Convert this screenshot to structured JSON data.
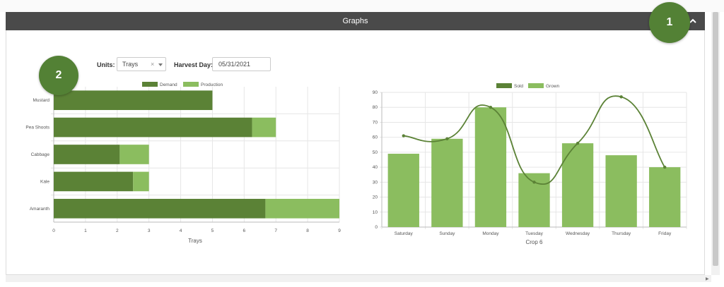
{
  "panel": {
    "title": "Graphs",
    "collapse_icon": "chevron-up-icon"
  },
  "badges": [
    "1",
    "2"
  ],
  "filters": {
    "units_label": "Units:",
    "units_value": "Trays",
    "clear_glyph": "×",
    "harvest_label": "Harvest Day:",
    "harvest_value": "05/31/2021"
  },
  "colors": {
    "header": "#4a4a4a",
    "badge": "#538135",
    "dark_green": "#5b8236",
    "light_green": "#8bbd5f"
  },
  "chart_data": [
    {
      "type": "bar",
      "orientation": "horizontal",
      "stacked": true,
      "categories": [
        "Mustard",
        "Pea Shoots",
        "Cabbage",
        "Kale",
        "Amaranth"
      ],
      "series": [
        {
          "name": "Demand",
          "values": [
            5,
            6.25,
            2.08,
            2.5,
            6.67
          ],
          "color": "#5b8236"
        },
        {
          "name": "Production",
          "values": [
            0,
            0.75,
            0.92,
            0.5,
            2.33
          ],
          "color": "#8bbd5f"
        }
      ],
      "xlabel": "Trays",
      "xlim": [
        0,
        9
      ],
      "xticks": [
        "0",
        "1",
        "2",
        "3",
        "4",
        "5",
        "6",
        "7",
        "8",
        "9"
      ],
      "legend": "top",
      "grid": true
    },
    {
      "type": "bar",
      "overlay": "line",
      "categories": [
        "Saturday",
        "Sunday",
        "Monday",
        "Tuesday",
        "Wednesday",
        "Thursday",
        "Friday"
      ],
      "series": [
        {
          "name": "Sold",
          "type": "line",
          "values": [
            61,
            59,
            80,
            30,
            56,
            87,
            40
          ],
          "color": "#5b8236"
        },
        {
          "name": "Grown",
          "type": "bar",
          "values": [
            49,
            59,
            80,
            36,
            56,
            48,
            40
          ],
          "color": "#8bbd5f"
        }
      ],
      "xlabel": "Crop 6",
      "ylim": [
        0,
        90
      ],
      "yticks": [
        "0",
        "10",
        "20",
        "30",
        "40",
        "50",
        "60",
        "70",
        "80",
        "90"
      ],
      "legend": "top",
      "grid": true
    }
  ]
}
